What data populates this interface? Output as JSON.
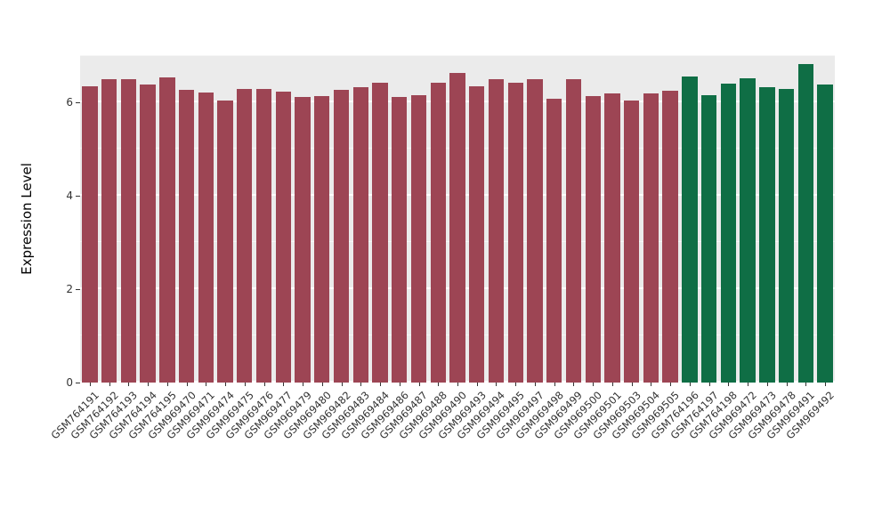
{
  "chart_data": {
    "type": "bar",
    "title": "",
    "xlabel": "",
    "ylabel": "Expression Level",
    "ylim": [
      0,
      7
    ],
    "yticks_major": [
      0,
      2,
      4,
      6
    ],
    "yticks_minor": [
      1,
      3,
      5,
      7
    ],
    "grid": true,
    "legend": "none",
    "panel_background": "#ebebeb",
    "gridline_color": "#ffffff",
    "tick_label_color": "#333333",
    "axis_title_color": "#000000",
    "categories": [
      "GSM764191",
      "GSM764192",
      "GSM764193",
      "GSM764194",
      "GSM764195",
      "GSM969470",
      "GSM969471",
      "GSM969474",
      "GSM969475",
      "GSM969476",
      "GSM969477",
      "GSM969479",
      "GSM969480",
      "GSM969482",
      "GSM969483",
      "GSM969484",
      "GSM969486",
      "GSM969487",
      "GSM969488",
      "GSM969490",
      "GSM969493",
      "GSM969494",
      "GSM969495",
      "GSM969497",
      "GSM969498",
      "GSM969499",
      "GSM969500",
      "GSM969501",
      "GSM969503",
      "GSM969504",
      "GSM969505",
      "GSM764196",
      "GSM764197",
      "GSM764198",
      "GSM969472",
      "GSM969473",
      "GSM969478",
      "GSM969491",
      "GSM969492"
    ],
    "values": [
      6.33,
      6.49,
      6.49,
      6.37,
      6.52,
      6.26,
      6.2,
      6.03,
      6.28,
      6.28,
      6.22,
      6.11,
      6.12,
      6.26,
      6.31,
      6.41,
      6.11,
      6.14,
      6.41,
      6.62,
      6.33,
      6.49,
      6.41,
      6.49,
      6.07,
      6.49,
      6.13,
      6.18,
      6.03,
      6.18,
      6.24,
      6.54,
      6.14,
      6.39,
      6.5,
      6.31,
      6.27,
      6.81,
      6.37
    ],
    "groups": [
      "group1",
      "group1",
      "group1",
      "group1",
      "group1",
      "group1",
      "group1",
      "group1",
      "group1",
      "group1",
      "group1",
      "group1",
      "group1",
      "group1",
      "group1",
      "group1",
      "group1",
      "group1",
      "group1",
      "group1",
      "group1",
      "group1",
      "group1",
      "group1",
      "group1",
      "group1",
      "group1",
      "group1",
      "group1",
      "group1",
      "group1",
      "group2",
      "group2",
      "group2",
      "group2",
      "group2",
      "group2",
      "group2",
      "group2"
    ],
    "colors": {
      "group1": "#9d4554",
      "group2": "#0f6e45"
    }
  }
}
